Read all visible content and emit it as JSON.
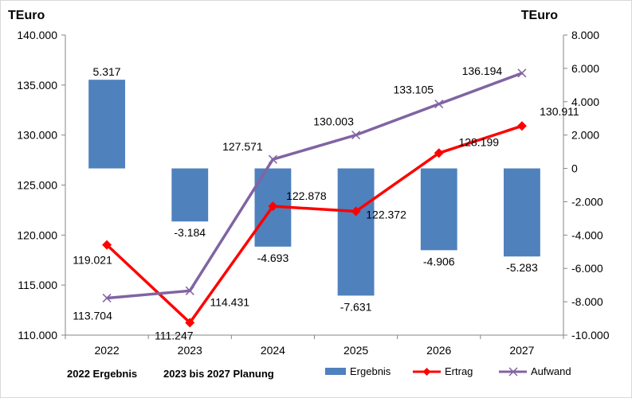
{
  "chart_data": {
    "type": "bar+line",
    "left_unit": "TEuro",
    "right_unit": "TEuro",
    "categories": [
      "2022",
      "2023",
      "2024",
      "2025",
      "2026",
      "2027"
    ],
    "left_axis": {
      "ylim": [
        110000,
        140000
      ],
      "ticks": [
        110000,
        115000,
        120000,
        125000,
        130000,
        135000,
        140000
      ],
      "tick_labels": [
        "110.000",
        "115.000",
        "120.000",
        "125.000",
        "130.000",
        "135.000",
        "140.000"
      ]
    },
    "right_axis": {
      "ylim": [
        -10000,
        8000
      ],
      "ticks": [
        -10000,
        -8000,
        -6000,
        -4000,
        -2000,
        0,
        2000,
        4000,
        6000,
        8000
      ],
      "tick_labels": [
        "-10.000",
        "-8.000",
        "-6.000",
        "-4.000",
        "-2.000",
        "0",
        "2.000",
        "4.000",
        "6.000",
        "8.000"
      ]
    },
    "series": [
      {
        "name": "Ergebnis",
        "kind": "bar",
        "axis": "right",
        "color": "#4f81bd",
        "values": [
          5317,
          -3184,
          -4693,
          -7631,
          -4906,
          -5283
        ],
        "labels": [
          "5.317",
          "-3.184",
          "-4.693",
          "-7.631",
          "-4.906",
          "-5.283"
        ]
      },
      {
        "name": "Ertrag",
        "kind": "line",
        "marker": "diamond",
        "axis": "left",
        "color": "#ff0000",
        "values": [
          119021,
          111247,
          122878,
          122372,
          128199,
          130911
        ],
        "labels": [
          "119.021",
          "111.247",
          "122.878",
          "122.372",
          "128.199",
          "130.911"
        ]
      },
      {
        "name": "Aufwand",
        "kind": "line",
        "marker": "x",
        "axis": "left",
        "color": "#8064a2",
        "values": [
          113704,
          114431,
          127571,
          130003,
          133105,
          136194
        ],
        "labels": [
          "113.704",
          "114.431",
          "127.571",
          "130.003",
          "133.105",
          "136.194"
        ]
      }
    ],
    "notes": [
      "2022 Ergebnis",
      "2023 bis 2027 Planung"
    ],
    "legend": "bottom-right",
    "grid": false
  }
}
